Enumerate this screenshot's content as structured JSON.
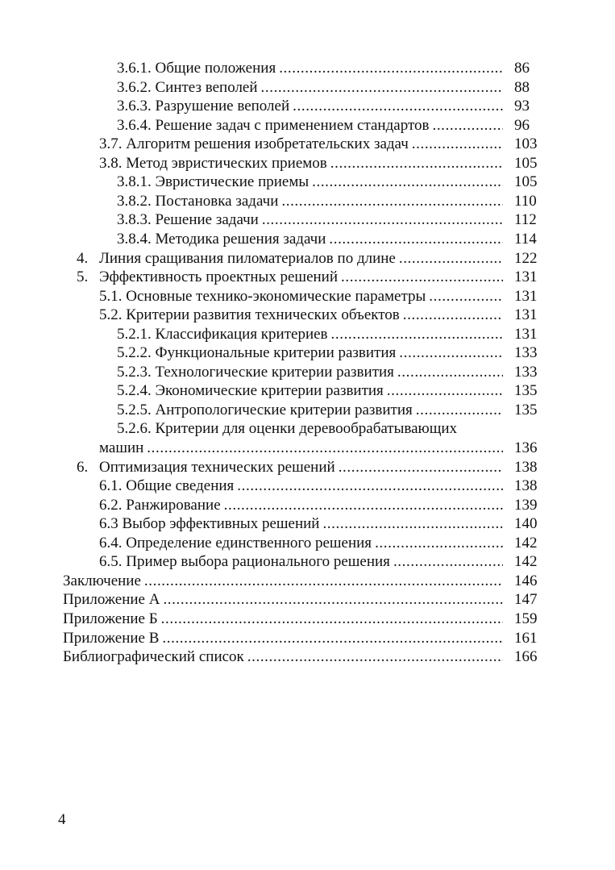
{
  "toc": [
    {
      "level": 3,
      "text": "3.6.1. Общие положения",
      "page": "86"
    },
    {
      "level": 3,
      "text": "3.6.2. Синтез веполей",
      "page": "88"
    },
    {
      "level": 3,
      "text": "3.6.3. Разрушение веполей",
      "page": "93"
    },
    {
      "level": 3,
      "text": "3.6.4. Решение задач с применением стандартов",
      "page": "96"
    },
    {
      "level": 2,
      "text": "3.7. Алгоритм решения изобретательских задач",
      "page": "103"
    },
    {
      "level": 2,
      "text": "3.8. Метод эвристических приемов",
      "page": "105"
    },
    {
      "level": 3,
      "text": "3.8.1. Эвристические приемы",
      "page": "105"
    },
    {
      "level": 3,
      "text": "3.8.2. Постановка задачи",
      "page": "110"
    },
    {
      "level": 3,
      "text": "3.8.3. Решение задачи",
      "page": "112"
    },
    {
      "level": 3,
      "text": "3.8.4. Методика решения задачи",
      "page": "114"
    },
    {
      "level": 1,
      "num": "4.",
      "text": "Линия сращивания пиломатериалов по длине",
      "page": "122"
    },
    {
      "level": 1,
      "num": "5.",
      "text": "Эффективность проектных решений",
      "page": "131"
    },
    {
      "level": 2,
      "text": "5.1. Основные технико-экономические параметры",
      "page": "131"
    },
    {
      "level": 2,
      "text": "5.2. Критерии развития технических объектов",
      "page": "131"
    },
    {
      "level": 3,
      "text": "5.2.1. Классификация критериев",
      "page": "131"
    },
    {
      "level": 3,
      "text": "5.2.2. Функциональные критерии развития",
      "page": "133"
    },
    {
      "level": 3,
      "text": "5.2.3. Технологические критерии развития",
      "page": "133"
    },
    {
      "level": 3,
      "text": "5.2.4. Экономические критерии развития",
      "page": "135"
    },
    {
      "level": 3,
      "text": "5.2.5. Антропологические критерии развития",
      "page": "135"
    },
    {
      "level": 3,
      "text": "5.2.6. Критерии для оценки деревообрабатывающих",
      "page": ""
    },
    {
      "level": 2,
      "text": "машин",
      "page": "136"
    },
    {
      "level": 1,
      "num": "6.",
      "text": "Оптимизация технических решений",
      "page": "138"
    },
    {
      "level": 2,
      "text": "6.1. Общие сведения",
      "page": "138"
    },
    {
      "level": 2,
      "text": "6.2. Ранжирование",
      "page": "139"
    },
    {
      "level": 2,
      "text": "6.3 Выбор эффективных решений",
      "page": "140"
    },
    {
      "level": 2,
      "text": "6.4. Определение единственного решения",
      "page": "142"
    },
    {
      "level": 2,
      "text": "6.5. Пример выбора рационального решения",
      "page": "142"
    },
    {
      "level": 0,
      "text": "Заключение",
      "page": "146"
    },
    {
      "level": 0,
      "text": "Приложение А",
      "page": "147"
    },
    {
      "level": 0,
      "text": "Приложение Б",
      "page": "159"
    },
    {
      "level": 0,
      "text": "Приложение В",
      "page": "161"
    },
    {
      "level": 0,
      "text": "Библиографический список",
      "page": "166"
    }
  ],
  "page_number": "4"
}
